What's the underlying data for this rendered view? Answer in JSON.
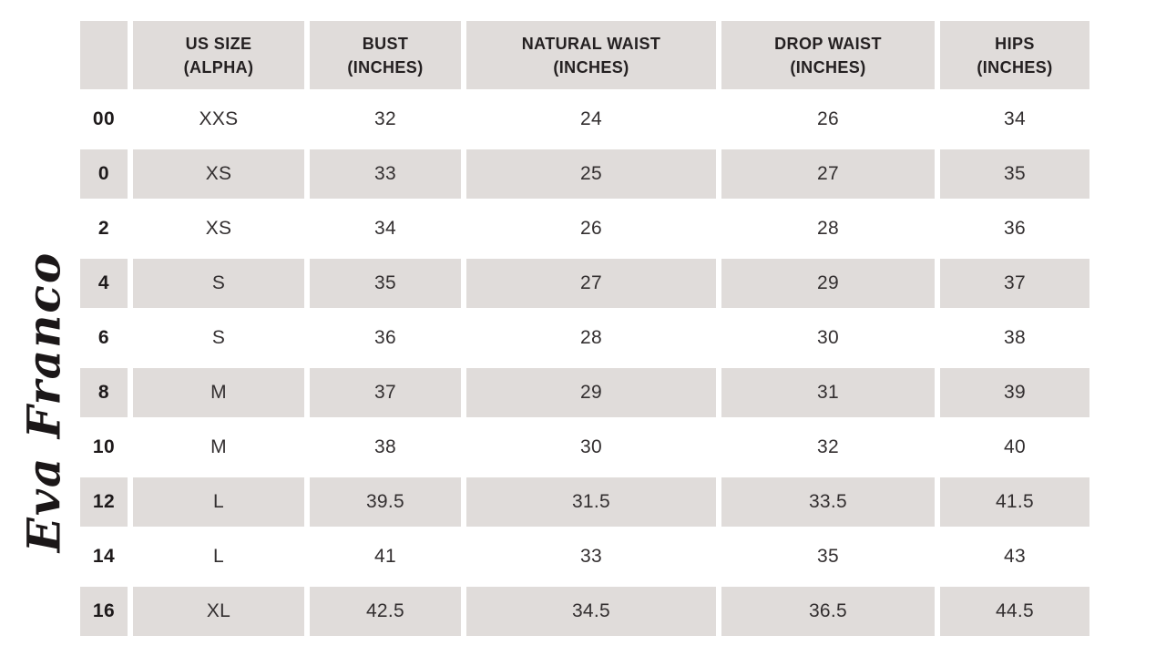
{
  "brand": {
    "logo_text": "Eva Franco"
  },
  "colors": {
    "row_shade": "#e0dcda",
    "header_text": "#242021",
    "body_text": "#332f30",
    "background": "#ffffff"
  },
  "table": {
    "headers": [
      "",
      "US SIZE\n(ALPHA)",
      "BUST\n(INCHES)",
      "NATURAL WAIST\n(INCHES)",
      "DROP WAIST\n(INCHES)",
      "HIPS\n(INCHES)"
    ],
    "rows": [
      [
        "00",
        "XXS",
        "32",
        "24",
        "26",
        "34"
      ],
      [
        "0",
        "XS",
        "33",
        "25",
        "27",
        "35"
      ],
      [
        "2",
        "XS",
        "34",
        "26",
        "28",
        "36"
      ],
      [
        "4",
        "S",
        "35",
        "27",
        "29",
        "37"
      ],
      [
        "6",
        "S",
        "36",
        "28",
        "30",
        "38"
      ],
      [
        "8",
        "M",
        "37",
        "29",
        "31",
        "39"
      ],
      [
        "10",
        "M",
        "38",
        "30",
        "32",
        "40"
      ],
      [
        "12",
        "L",
        "39.5",
        "31.5",
        "33.5",
        "41.5"
      ],
      [
        "14",
        "L",
        "41",
        "33",
        "35",
        "43"
      ],
      [
        "16",
        "XL",
        "42.5",
        "34.5",
        "36.5",
        "44.5"
      ]
    ]
  },
  "chart_data": {
    "type": "table",
    "columns": [
      "",
      "US SIZE (ALPHA)",
      "BUST (INCHES)",
      "NATURAL WAIST (INCHES)",
      "DROP WAIST (INCHES)",
      "HIPS (INCHES)"
    ],
    "rows": [
      [
        "00",
        "XXS",
        32,
        24,
        26,
        34
      ],
      [
        "0",
        "XS",
        33,
        25,
        27,
        35
      ],
      [
        "2",
        "XS",
        34,
        26,
        28,
        36
      ],
      [
        "4",
        "S",
        35,
        27,
        29,
        37
      ],
      [
        "6",
        "S",
        36,
        28,
        30,
        38
      ],
      [
        "8",
        "M",
        37,
        29,
        31,
        39
      ],
      [
        "10",
        "M",
        38,
        30,
        32,
        40
      ],
      [
        "12",
        "L",
        39.5,
        31.5,
        33.5,
        41.5
      ],
      [
        "14",
        "L",
        41,
        33,
        35,
        43
      ],
      [
        "16",
        "XL",
        42.5,
        34.5,
        36.5,
        44.5
      ]
    ],
    "layout": {
      "striped_rows": true,
      "stripe_color": "#e0dcda",
      "first_data_row_background": "#ffffff"
    }
  }
}
